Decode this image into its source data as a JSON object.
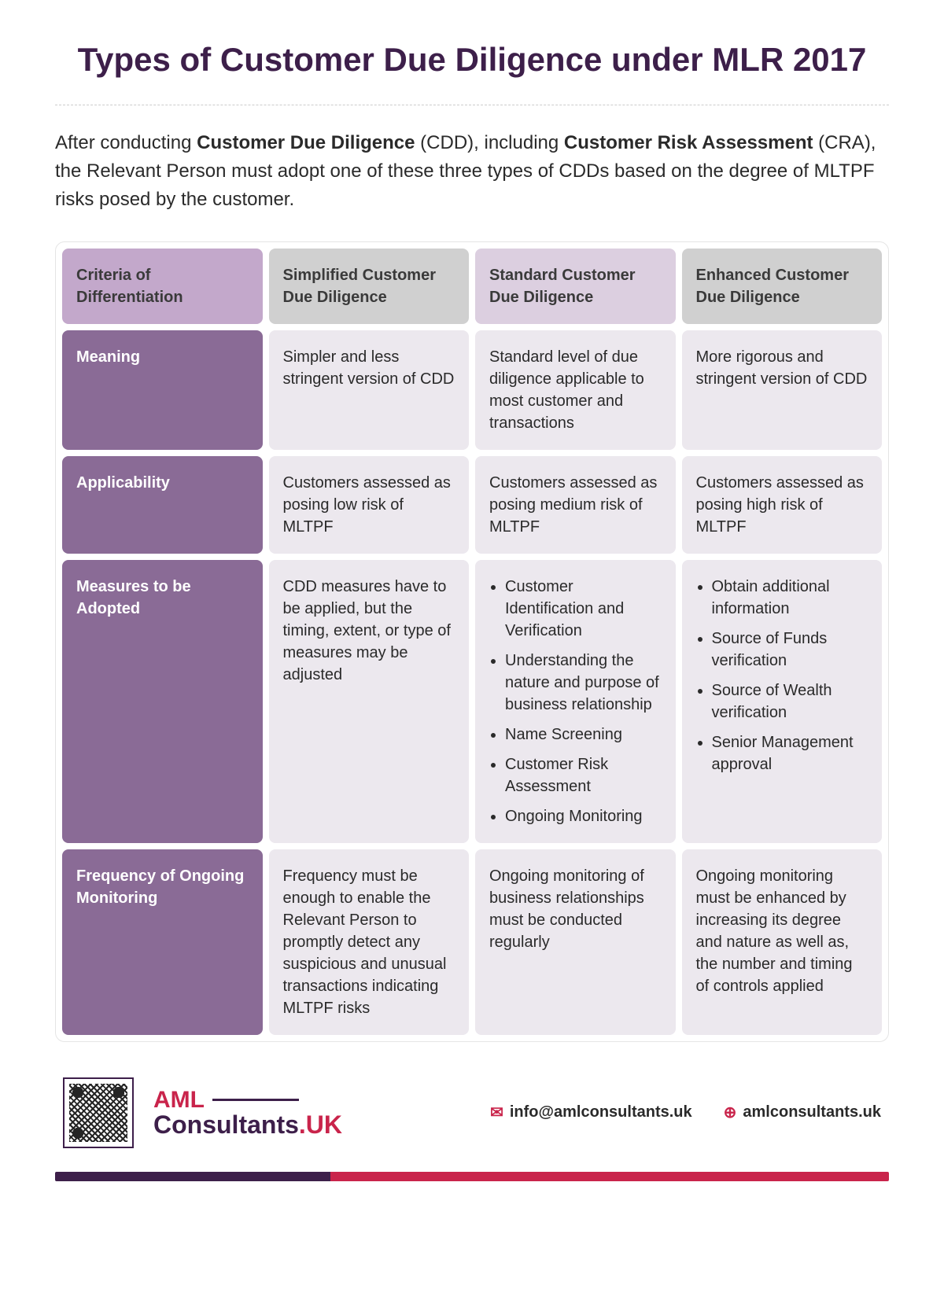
{
  "title": "Types of Customer Due Diligence under MLR 2017",
  "intro_parts": {
    "p1": "After conducting ",
    "b1": "Customer Due Diligence",
    "p2": " (CDD), including ",
    "b2": "Customer Risk Assessment",
    "p3": " (CRA), the Relevant Person must adopt one of these three types of CDDs based on the degree of MLTPF risks posed by the customer."
  },
  "headers": {
    "criteria": "Criteria of Differentiation",
    "simplified": "Simplified Customer Due Diligence",
    "standard": "Standard Customer Due Diligence",
    "enhanced": "Enhanced Customer Due Diligence"
  },
  "rows": {
    "meaning": {
      "label": "Meaning",
      "simplified": "Simpler and less stringent version of CDD",
      "standard": "Standard level of due diligence applicable to most customer and transactions",
      "enhanced": "More rigorous and stringent version of CDD"
    },
    "applicability": {
      "label": "Applicability",
      "simplified": "Customers assessed as posing low risk of MLTPF",
      "standard": "Customers assessed as posing medium risk of MLTPF",
      "enhanced": "Customers assessed as posing high risk of MLTPF"
    },
    "measures": {
      "label": "Measures to be Adopted",
      "simplified": "CDD measures have to be applied, but the timing, extent, or type of measures may be adjusted",
      "standard_list": [
        "Customer Identification and Verification",
        "Understanding the nature and purpose of business relationship",
        "Name Screening",
        "Customer Risk Assessment",
        "Ongoing Monitoring"
      ],
      "enhanced_list": [
        "Obtain additional information",
        "Source of Funds verification",
        "Source of Wealth verification",
        "Senior Management approval"
      ]
    },
    "frequency": {
      "label": "Frequency of Ongoing Monitoring",
      "simplified": "Frequency must be enough to enable the Relevant Person to promptly detect any suspicious and unusual transactions indicating MLTPF risks",
      "standard": "Ongoing monitoring of business relationships must be conducted regularly",
      "enhanced": "Ongoing monitoring must be enhanced by increasing its degree and nature as well as, the number and timing of controls applied"
    }
  },
  "footer": {
    "logo_top": "AML",
    "logo_bottom": "Consultants",
    "logo_uk": ".UK",
    "email": "info@amlconsultants.uk",
    "website": "amlconsultants.uk"
  },
  "styling": {
    "title_color": "#3d1f4a",
    "head_criteria_bg": "#c3a8cb",
    "head_col_bg": "#d0d0d0",
    "head_col_alt_bg": "#dccfe0",
    "row_label_bg": "#8a6b96",
    "row_cell_bg": "#ece8ee",
    "accent_red": "#c9244b",
    "accent_purple": "#3d1f4a"
  }
}
